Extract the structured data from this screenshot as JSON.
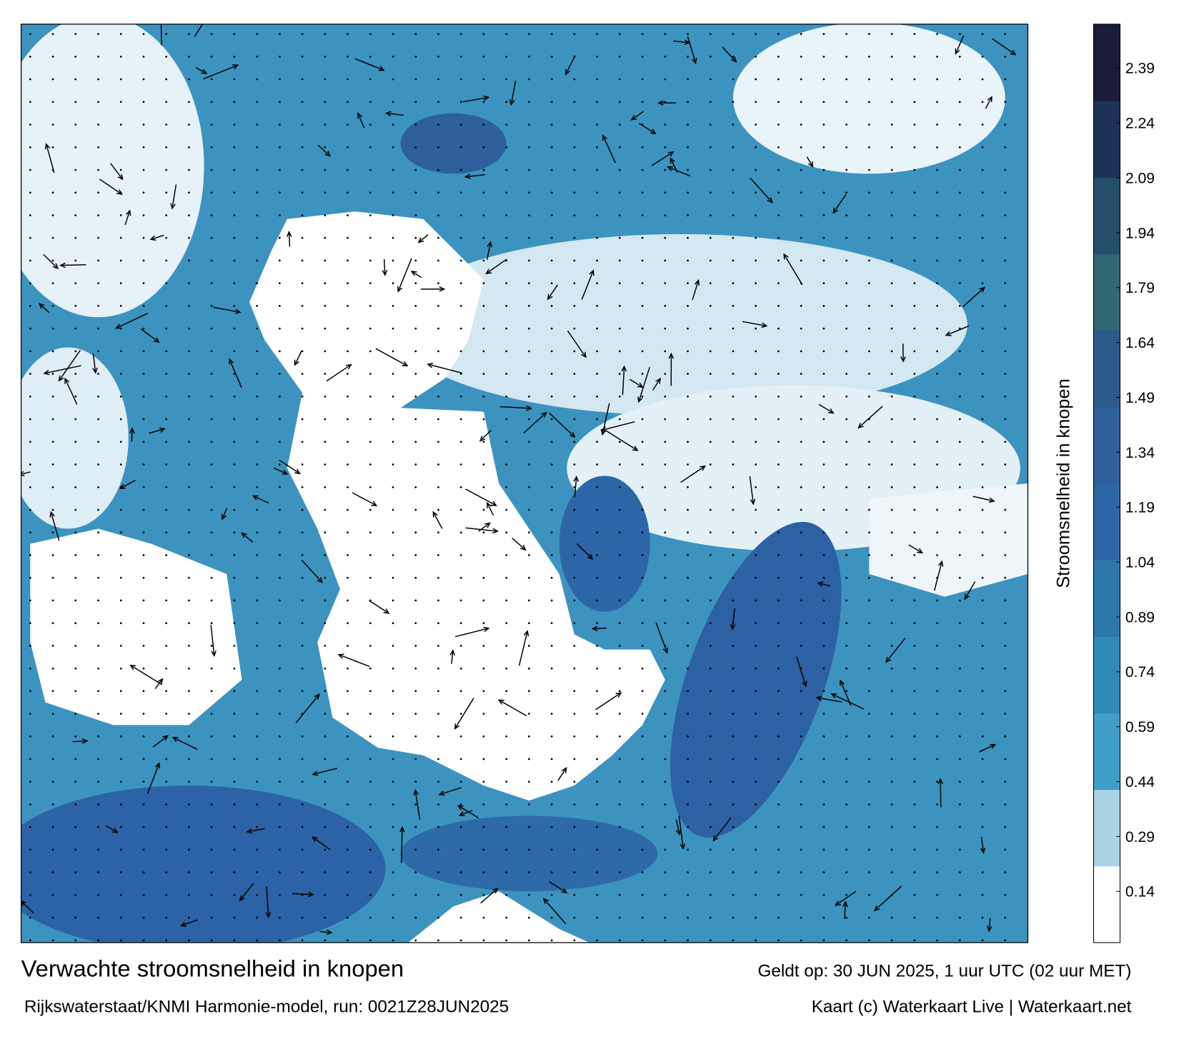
{
  "title": "Verwachte stroomsnelheid in knopen",
  "source": "Rijkswaterstaat/KNMI Harmonie-model, run: 0021Z28JUN2025",
  "valid": "Geldt op: 30 JUN 2025, 1 uur UTC (02 uur MET)",
  "credit": "Kaart (c) Waterkaart Live | Waterkaart.net",
  "colorbar": {
    "label": "Stroomsnelheid in knopen",
    "lim": [
      0,
      2.51
    ],
    "ticks": [
      0.14,
      0.29,
      0.44,
      0.59,
      0.74,
      0.89,
      1.04,
      1.19,
      1.34,
      1.49,
      1.64,
      1.79,
      1.94,
      2.09,
      2.24,
      2.39
    ],
    "colors": [
      "#ffffff",
      "#a9d4e6",
      "#3f9fc8",
      "#2f8ab8",
      "#2d78ab",
      "#2c66a6",
      "#2c5f9c",
      "#2d5a8c",
      "#2e6872",
      "#244e6a",
      "#1d3257",
      "#1a1a3a"
    ]
  }
}
